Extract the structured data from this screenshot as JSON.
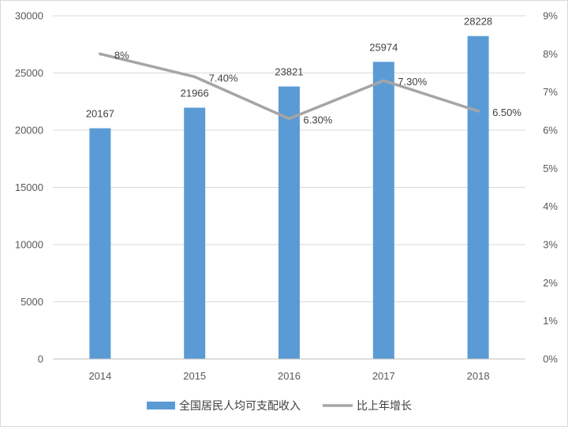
{
  "chart_data": {
    "type": "bar",
    "categories": [
      "2014",
      "2015",
      "2016",
      "2017",
      "2018"
    ],
    "series": [
      {
        "name": "全国居民人均可支配收入",
        "type": "bar",
        "axis": "left",
        "values": [
          20167,
          21966,
          23821,
          25974,
          28228
        ],
        "labels": [
          "20167",
          "21966",
          "23821",
          "25974",
          "28228"
        ],
        "color": "#5b9bd5"
      },
      {
        "name": "比上年增长",
        "type": "line",
        "axis": "right",
        "values": [
          8,
          7.4,
          6.3,
          7.3,
          6.5
        ],
        "labels": [
          "8%",
          "7.40%",
          "6.30%",
          "7.30%",
          "6.50%"
        ],
        "color": "#a5a5a5"
      }
    ],
    "y_left": {
      "range": [
        0,
        30000
      ],
      "ticks": [
        0,
        5000,
        10000,
        15000,
        20000,
        25000,
        30000
      ],
      "tick_labels": [
        "0",
        "5000",
        "10000",
        "15000",
        "20000",
        "25000",
        "30000"
      ]
    },
    "y_right": {
      "range": [
        0,
        9
      ],
      "ticks": [
        0,
        1,
        2,
        3,
        4,
        5,
        6,
        7,
        8,
        9
      ],
      "tick_labels": [
        "0%",
        "1%",
        "2%",
        "3%",
        "4%",
        "5%",
        "6%",
        "7%",
        "8%",
        "9%"
      ]
    },
    "grid": true,
    "legend_position": "bottom",
    "colors": {
      "gridline": "#d9d9d9",
      "axis": "#bfbfbf",
      "text": "#595959"
    }
  }
}
